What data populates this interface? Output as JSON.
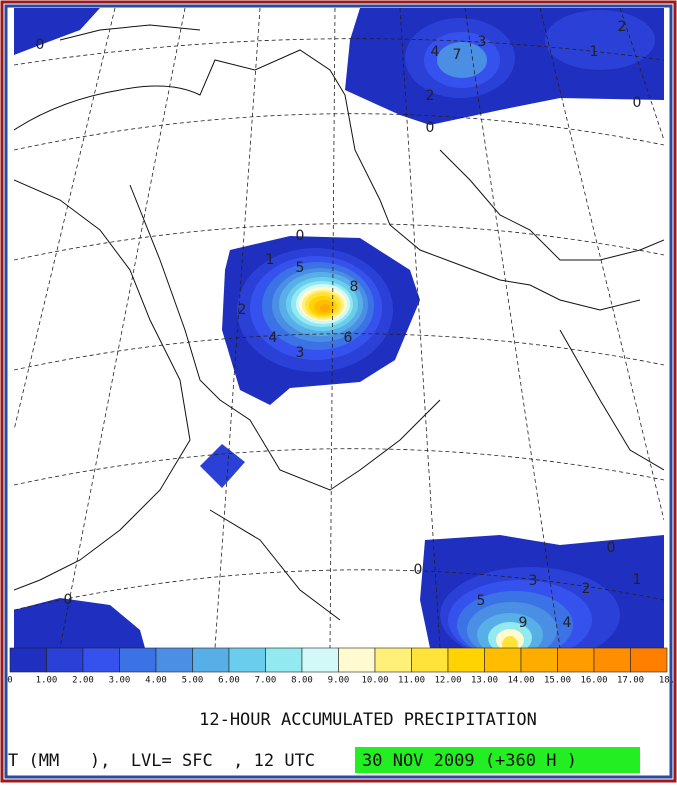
{
  "title": "12-HOUR ACCUMULATED PRECIPITATION",
  "footer": {
    "left": "T (MM   ),  LVL= SFC  , 12 UTC",
    "date": "30 NOV 2009 (+360 H )"
  },
  "colorbar": {
    "labels": [
      "0",
      "1.00",
      "2.00",
      "3.00",
      "4.00",
      "5.00",
      "6.00",
      "7.00",
      "8.00",
      "9.00",
      "10.00",
      "11.00",
      "12.00",
      "13.00",
      "14.00",
      "15.00",
      "16.00",
      "17.00",
      "18."
    ],
    "colors": [
      "#1f2fbf",
      "#2b40d6",
      "#3652ee",
      "#3b72e6",
      "#4a8fe4",
      "#58aee6",
      "#6bcdee",
      "#92e9ef",
      "#d2f8f8",
      "#fffad0",
      "#fff07a",
      "#ffe23a",
      "#ffd200",
      "#ffbc00",
      "#ffac00",
      "#ff9c00",
      "#ff8e00",
      "#ff8000"
    ]
  },
  "contour_labels": [
    "0",
    "1",
    "5",
    "8",
    "2",
    "4",
    "3",
    "6",
    "4",
    "7",
    "3",
    "2",
    "0",
    "1",
    "2",
    "0",
    "0",
    "0",
    "1",
    "0",
    "3",
    "2",
    "5",
    "9",
    "4",
    "0"
  ]
}
